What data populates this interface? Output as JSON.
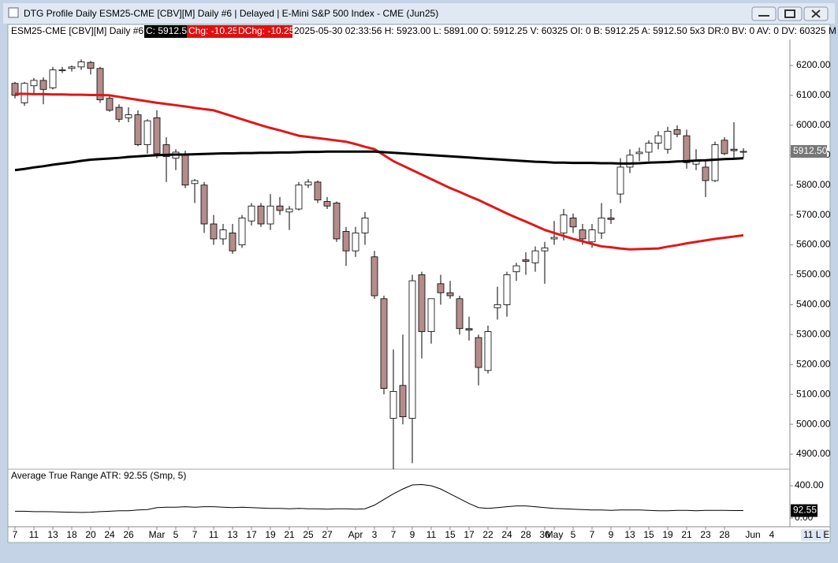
{
  "window": {
    "title": "DTG Profile Daily ESM25-CME [CBV][M]  Daily #6 | Delayed | E-Mini S&P 500 Index - CME (Jun25)",
    "info_symbol": "ESM25-CME [CBV][M]  Daily #6",
    "info_close": "C: 5912.50",
    "info_chg": "Chg: -10.25",
    "info_dchg": "DChg: -10.25",
    "info_rest": "2025-05-30 02:33:56 H: 5923.00 L: 5891.00 O: 5912.25 V: 60325 OI: 0 B: 5912.25 A: 5912.50 5x3 DR:0 BV: 0 AV: 0 DV: 60325 M",
    "status": "11 L E"
  },
  "chart_data": {
    "type": "candlestick",
    "categories": [
      "7",
      null,
      "11",
      null,
      "13",
      null,
      "18",
      null,
      "20",
      null,
      "24",
      null,
      "26",
      null,
      null,
      "Mar",
      null,
      "5",
      null,
      "7",
      null,
      "11",
      null,
      "13",
      null,
      "17",
      null,
      "19",
      null,
      "21",
      null,
      "25",
      null,
      "27",
      null,
      null,
      "Apr",
      null,
      "3",
      null,
      "7",
      null,
      "9",
      null,
      "11",
      null,
      "15",
      null,
      "17",
      null,
      "22",
      null,
      "24",
      null,
      "28",
      null,
      "30",
      "May",
      null,
      "5",
      null,
      "7",
      null,
      "9",
      null,
      "13",
      null,
      "15",
      null,
      "19",
      null,
      "21",
      null,
      "23",
      null,
      "28",
      null,
      null
    ],
    "x_extra_categories": [
      "Jun",
      "4"
    ],
    "open": [
      6140,
      6075,
      6132,
      6150,
      6125,
      6185,
      6190,
      6195,
      6210,
      6190,
      6090,
      6060,
      6025,
      6035,
      5935,
      6025,
      5935,
      5890,
      5900,
      5805,
      5800,
      5670,
      5620,
      5640,
      5600,
      5680,
      5730,
      5670,
      5730,
      5710,
      5720,
      5800,
      5810,
      5745,
      5740,
      5645,
      5580,
      5640,
      5560,
      5420,
      5020,
      5130,
      5020,
      5500,
      5310,
      5470,
      5440,
      5420,
      5320,
      5290,
      5180,
      5390,
      5400,
      5510,
      5550,
      5540,
      5580,
      5620,
      5640,
      5690,
      5650,
      5610,
      5640,
      5690,
      5770,
      5860,
      5905,
      5910,
      5940,
      5920,
      5985,
      5965,
      5870,
      5860,
      5815,
      5950,
      5920,
      5912.25
    ],
    "high": [
      6145,
      6145,
      6158,
      6160,
      6195,
      6195,
      6200,
      6220,
      6215,
      6195,
      6100,
      6070,
      6060,
      6050,
      6020,
      6050,
      5960,
      5920,
      5915,
      5820,
      5810,
      5700,
      5670,
      5670,
      5700,
      5740,
      5740,
      5770,
      5760,
      5730,
      5810,
      5820,
      5815,
      5760,
      5745,
      5660,
      5660,
      5710,
      5580,
      5430,
      5250,
      5300,
      5500,
      5510,
      5420,
      5500,
      5480,
      5430,
      5360,
      5300,
      5330,
      5460,
      5510,
      5540,
      5575,
      5595,
      5610,
      5680,
      5720,
      5705,
      5670,
      5670,
      5740,
      5720,
      5890,
      5920,
      5925,
      5950,
      5980,
      5995,
      6000,
      5985,
      5920,
      5880,
      5945,
      5960,
      6010,
      5923
    ],
    "low": [
      6090,
      6065,
      6100,
      6070,
      6120,
      6175,
      6180,
      6185,
      6170,
      6075,
      6045,
      6010,
      6010,
      5930,
      5905,
      5890,
      5810,
      5850,
      5790,
      5740,
      5640,
      5600,
      5600,
      5570,
      5590,
      5665,
      5660,
      5650,
      5700,
      5650,
      5715,
      5790,
      5740,
      5720,
      5610,
      5530,
      5560,
      5600,
      5420,
      5100,
      4850,
      5000,
      4870,
      5220,
      5270,
      5400,
      5420,
      5300,
      5280,
      5130,
      5170,
      5350,
      5360,
      5480,
      5500,
      5510,
      5470,
      5600,
      5615,
      5640,
      5600,
      5590,
      5620,
      5670,
      5740,
      5840,
      5880,
      5880,
      5920,
      5905,
      5960,
      5855,
      5850,
      5760,
      5810,
      5900,
      5890,
      5891
    ],
    "close": [
      6100,
      6140,
      6150,
      6120,
      6185,
      6185,
      6195,
      6212,
      6190,
      6085,
      6050,
      6020,
      6035,
      5935,
      6015,
      5905,
      5895,
      5910,
      5800,
      5815,
      5670,
      5620,
      5650,
      5580,
      5690,
      5730,
      5670,
      5730,
      5715,
      5720,
      5800,
      5810,
      5750,
      5730,
      5620,
      5580,
      5640,
      5690,
      5430,
      5120,
      5110,
      5025,
      5480,
      5310,
      5420,
      5440,
      5430,
      5320,
      5315,
      5190,
      5310,
      5400,
      5500,
      5530,
      5545,
      5580,
      5590,
      5625,
      5700,
      5660,
      5620,
      5650,
      5690,
      5685,
      5860,
      5900,
      5910,
      5940,
      5965,
      5980,
      5970,
      5875,
      5880,
      5815,
      5935,
      5905,
      5915,
      5912.5
    ],
    "up_color": "#ffffff",
    "down_color": "#b48c8c",
    "ylim": [
      4850,
      6287
    ],
    "yticks": [
      {
        "value": 4900,
        "label": "4900.00"
      },
      {
        "value": 5000,
        "label": "5000.00"
      },
      {
        "value": 5100,
        "label": "5100.00"
      },
      {
        "value": 5200,
        "label": "5200.00"
      },
      {
        "value": 5300,
        "label": "5300.00"
      },
      {
        "value": 5400,
        "label": "5400.00"
      },
      {
        "value": 5500,
        "label": "5500.00"
      },
      {
        "value": 5600,
        "label": "5600.00"
      },
      {
        "value": 5700,
        "label": "5700.00"
      },
      {
        "value": 5800,
        "label": "5800.00"
      },
      {
        "value": 5900,
        "label": "5900.00"
      },
      {
        "value": 6000,
        "label": "6000.00"
      },
      {
        "value": 6100,
        "label": "6100.00"
      },
      {
        "value": 6200,
        "label": "6200.00"
      }
    ],
    "last_price_label": "5912.50",
    "lines": [
      {
        "color": "#e01818",
        "values": [
          6105,
          6105,
          6104,
          6104,
          6103,
          6103,
          6102,
          6102,
          6101,
          6101,
          6100,
          6095,
          6090,
          6085,
          6080,
          6075,
          6071,
          6067,
          6063,
          6058,
          6054,
          6050,
          6040,
          6030,
          6020,
          6010,
          6000,
          5991,
          5983,
          5974,
          5965,
          5961,
          5957,
          5953,
          5949,
          5945,
          5937,
          5928,
          5920,
          5900,
          5880,
          5865,
          5850,
          5835,
          5820,
          5805,
          5790,
          5777,
          5763,
          5750,
          5735,
          5720,
          5705,
          5691,
          5678,
          5664,
          5650,
          5640,
          5630,
          5620,
          5612,
          5603,
          5595,
          5592,
          5588,
          5585,
          5586,
          5587,
          5588,
          5594,
          5599,
          5605,
          5610,
          5615,
          5620,
          5624,
          5628,
          5632
        ]
      },
      {
        "color": "#000000",
        "values": [
          5850,
          5854,
          5859,
          5863,
          5868,
          5872,
          5876,
          5881,
          5885,
          5887,
          5889,
          5891,
          5894,
          5896,
          5898,
          5900,
          5901,
          5902,
          5902,
          5903,
          5904,
          5905,
          5906,
          5906,
          5907,
          5907,
          5908,
          5908,
          5909,
          5909,
          5910,
          5911,
          5911,
          5912,
          5912,
          5912,
          5912,
          5912,
          5912,
          5910,
          5908,
          5906,
          5904,
          5902,
          5900,
          5898,
          5896,
          5894,
          5892,
          5890,
          5888,
          5886,
          5884,
          5882,
          5880,
          5878,
          5877,
          5875,
          5875,
          5874,
          5874,
          5874,
          5873,
          5873,
          5872,
          5872,
          5873,
          5875,
          5876,
          5877,
          5879,
          5880,
          5882,
          5883,
          5885,
          5887,
          5888,
          5890
        ]
      }
    ],
    "indicator": {
      "title": "Average True Range  ATR: 92.55   (Smp, 5)",
      "color": "#000000",
      "values": [
        85,
        85,
        80,
        80,
        78,
        75,
        72,
        70,
        72,
        80,
        85,
        90,
        90,
        100,
        105,
        130,
        135,
        135,
        140,
        135,
        140,
        140,
        135,
        130,
        135,
        130,
        125,
        120,
        120,
        115,
        120,
        115,
        115,
        110,
        115,
        115,
        110,
        115,
        160,
        230,
        300,
        360,
        410,
        415,
        400,
        360,
        300,
        240,
        180,
        130,
        120,
        130,
        140,
        150,
        150,
        140,
        130,
        120,
        115,
        110,
        105,
        100,
        100,
        95,
        100,
        100,
        100,
        95,
        90,
        90,
        95,
        95,
        90,
        95,
        95,
        95,
        93,
        92.55
      ],
      "ylim": [
        -107,
        605
      ],
      "yticks": [
        {
          "value": 400,
          "label": "400.00"
        },
        {
          "value": 0,
          "label": "0.00"
        }
      ],
      "last_label": "92.55"
    }
  }
}
